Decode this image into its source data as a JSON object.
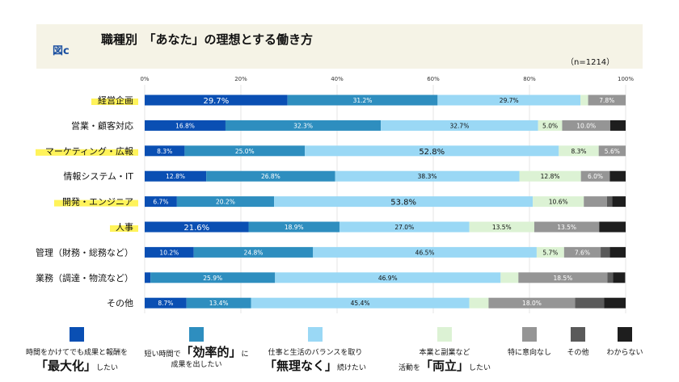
{
  "header": {
    "figure_label": "図c",
    "title": "職種別　「あなた」の理想とする働き方",
    "n": "（n=1214）"
  },
  "chart_data": {
    "type": "bar",
    "orientation": "horizontal",
    "stacked": true,
    "xlim": [
      0,
      100
    ],
    "ticks": [
      "0%",
      "20%",
      "40%",
      "60%",
      "80%",
      "100%"
    ],
    "grid": true,
    "highlighted": [
      "経営企画",
      "マーケティング・広報",
      "開発・エンジニア",
      "人事"
    ],
    "categories": [
      "経営企画",
      "営業・顧客対応",
      "マーケティング・広報",
      "情報システム・IT",
      "開発・エンジニア",
      "人事",
      "管理（財務・総務など）",
      "業務（調達・物流など）",
      "その他"
    ],
    "series": [
      {
        "name": "時間をかけてでも成果と報酬を「最大化」したい",
        "color": "#0a4fb3",
        "values": [
          29.7,
          16.8,
          8.3,
          12.8,
          6.7,
          21.6,
          10.2,
          1.2,
          8.7
        ],
        "labels": [
          "29.7%",
          "16.8%",
          "8.3%",
          "12.8%",
          "6.7%",
          "21.6%",
          "10.2%",
          "",
          "8.7%"
        ]
      },
      {
        "name": "短い時間で「効率的」に成果を出したい",
        "color": "#2e8ebf",
        "values": [
          31.2,
          32.3,
          25.0,
          26.8,
          20.2,
          18.9,
          24.8,
          25.9,
          13.4
        ],
        "labels": [
          "31.2%",
          "32.3%",
          "25.0%",
          "26.8%",
          "20.2%",
          "18.9%",
          "24.8%",
          "25.9%",
          "13.4%"
        ]
      },
      {
        "name": "仕事と生活のバランスを取り「無理なく」続けたい",
        "color": "#9ad8f5",
        "values": [
          29.7,
          32.7,
          52.8,
          38.3,
          53.8,
          27.0,
          46.5,
          46.9,
          45.4
        ],
        "labels": [
          "29.7%",
          "32.7%",
          "52.8%",
          "38.3%",
          "53.8%",
          "27.0%",
          "46.5%",
          "46.9%",
          "45.4%"
        ]
      },
      {
        "name": "本業と副業など活動を「両立」したい",
        "color": "#dcf2d4",
        "values": [
          1.6,
          5.0,
          8.3,
          12.8,
          10.6,
          13.5,
          5.7,
          3.7,
          4.0
        ],
        "labels": [
          "",
          "5.0%",
          "8.3%",
          "12.8%",
          "10.6%",
          "13.5%",
          "5.7%",
          "",
          ""
        ]
      },
      {
        "name": "特に意向なし",
        "color": "#959595",
        "values": [
          7.8,
          10.0,
          5.6,
          6.0,
          4.8,
          13.5,
          7.6,
          18.5,
          18.0
        ],
        "labels": [
          "7.8%",
          "10.0%",
          "5.6%",
          "6.0%",
          "",
          "13.5%",
          "7.6%",
          "18.5%",
          "18.0%"
        ]
      },
      {
        "name": "その他",
        "color": "#5a5a5a",
        "values": [
          0,
          0,
          0,
          0,
          1.1,
          0,
          1.9,
          1.2,
          6.0
        ],
        "labels": [
          "",
          "",
          "",
          "",
          "",
          "",
          "",
          "",
          ""
        ]
      },
      {
        "name": "わからない",
        "color": "#1e1e1e",
        "values": [
          0,
          3.2,
          0,
          3.3,
          2.8,
          5.5,
          3.3,
          2.5,
          4.5
        ],
        "labels": [
          "",
          "",
          "",
          "",
          "",
          "",
          "",
          "",
          ""
        ]
      }
    ]
  },
  "legend": [
    {
      "line1": "時間をかけてでも成果と報酬を",
      "big": "「最大化」",
      "after": "したい",
      "before": ""
    },
    {
      "line1": "",
      "before": "短い時間で",
      "big": "「効率的」",
      "after": "に",
      "line3": "成果を出したい"
    },
    {
      "line1": "仕事と生活のバランスを取り",
      "before": "",
      "big": "「無理なく」",
      "after": "続けたい"
    },
    {
      "line1": "本業と副業など",
      "before": "活動を",
      "big": "「両立」",
      "after": "したい"
    },
    {
      "line1": "特に意向なし"
    },
    {
      "line1": "その他"
    },
    {
      "line1": "わからない"
    }
  ]
}
